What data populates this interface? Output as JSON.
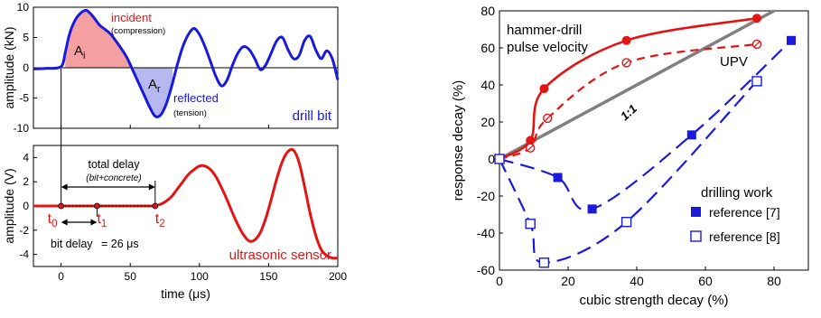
{
  "colors": {
    "blue": "#1a1adc",
    "red": "#e31414",
    "gray": "#808080",
    "red_fill": "#f4a0a0",
    "blue_fill": "#b8b8f0"
  },
  "chart_data": [
    {
      "type": "line",
      "panel": "top-left",
      "ylabel": "amplitude (kN)",
      "xlim": [
        -20,
        200
      ],
      "ylim": [
        -10,
        10
      ],
      "yticks": [
        -10,
        -5,
        0,
        5,
        10
      ],
      "series": [
        {
          "name": "drill bit",
          "color": "#1a1adc",
          "x": [
            -20,
            -10,
            0,
            3,
            6,
            10,
            14,
            18,
            21,
            24,
            28,
            32,
            36,
            40,
            44,
            48,
            52,
            56,
            60,
            64,
            68,
            72,
            76,
            80,
            84,
            88,
            92,
            96,
            100,
            104,
            108,
            112,
            116,
            120,
            124,
            128,
            132,
            136,
            140,
            144,
            148,
            152,
            156,
            160,
            164,
            168,
            172,
            176,
            180,
            184,
            188,
            192,
            196,
            200
          ],
          "y": [
            -0.2,
            -0.1,
            0.2,
            2.5,
            5.5,
            7.8,
            9.0,
            9.5,
            9.0,
            8.2,
            7.0,
            6.3,
            5.5,
            4.3,
            3.0,
            1.5,
            -0.5,
            -2.5,
            -4.5,
            -6.5,
            -8.0,
            -7.8,
            -6.0,
            -3.0,
            0.5,
            3.5,
            5.5,
            6.5,
            5.5,
            3.5,
            1.0,
            -1.5,
            -3.0,
            -2.0,
            0.5,
            2.5,
            3.5,
            3.0,
            1.5,
            -0.3,
            0.5,
            2.5,
            4.5,
            5.0,
            3.0,
            1.5,
            2.0,
            4.5,
            5.2,
            3.0,
            1.5,
            2.8,
            1.5,
            -2.0
          ]
        }
      ],
      "annotations": {
        "incident": "incident",
        "compression": "(compression)",
        "reflected": "reflected",
        "tension": "(tension)",
        "area_incident_main": "A",
        "area_incident_sub": "i",
        "area_reflected_main": "A",
        "area_reflected_sub": "r",
        "series_label": "drill bit"
      }
    },
    {
      "type": "line",
      "panel": "bottom-left",
      "xlabel": "time (μs)",
      "ylabel": "amplitude (V)",
      "xlim": [
        -20,
        200
      ],
      "ylim": [
        -5,
        5
      ],
      "xticks": [
        0,
        50,
        100,
        150,
        200
      ],
      "yticks": [
        -4,
        -2,
        0,
        2,
        4
      ],
      "series": [
        {
          "name": "ultrasonic sensor",
          "color": "#e31414",
          "x": [
            -20,
            0,
            20,
            40,
            60,
            66,
            68,
            72,
            76,
            80,
            84,
            88,
            92,
            96,
            100,
            104,
            108,
            112,
            116,
            120,
            124,
            128,
            132,
            136,
            140,
            144,
            148,
            152,
            156,
            160,
            164,
            168,
            172,
            176,
            180,
            184,
            188,
            192,
            196,
            200
          ],
          "y": [
            0,
            0,
            0,
            0,
            0,
            0,
            0.02,
            0.15,
            0.4,
            0.8,
            1.4,
            2.0,
            2.6,
            3.0,
            3.3,
            3.3,
            3.0,
            2.4,
            1.5,
            0.5,
            -0.6,
            -1.6,
            -2.4,
            -2.9,
            -2.8,
            -2.2,
            -1.0,
            0.6,
            2.3,
            3.7,
            4.5,
            4.6,
            3.6,
            1.6,
            -0.6,
            -2.4,
            -3.6,
            -4.1,
            -4.3,
            -4.3
          ]
        }
      ],
      "markers": [
        {
          "label_main": "t",
          "label_sub": "0",
          "x": 0
        },
        {
          "label_main": "t",
          "label_sub": "1",
          "x": 26
        },
        {
          "label_main": "t",
          "label_sub": "2",
          "x": 68
        }
      ],
      "annotations": {
        "total_delay": "total delay",
        "total_delay_note": "(bit+concrete)",
        "bit_delay_prefix": "bit delay",
        "bit_delay_value": "= 26 μs",
        "series_label": "ultrasonic sensor"
      }
    },
    {
      "type": "scatter",
      "panel": "right",
      "xlabel": "cubic strength decay (%)",
      "ylabel": "response decay (%)",
      "xlim": [
        0,
        90
      ],
      "ylim": [
        -60,
        80
      ],
      "xticks": [
        0,
        20,
        40,
        60,
        80
      ],
      "yticks": [
        -60,
        -40,
        -20,
        0,
        20,
        40,
        60,
        80
      ],
      "series": [
        {
          "name": "hammer-drill pulse velocity",
          "color": "#e31414",
          "marker": "filled-circle",
          "line": "solid",
          "x": [
            0,
            9,
            13,
            37,
            75
          ],
          "y": [
            0,
            10,
            38,
            64,
            76
          ]
        },
        {
          "name": "UPV",
          "color": "#e31414",
          "marker": "open-circle",
          "line": "dashed",
          "x": [
            0,
            9,
            14,
            37,
            75
          ],
          "y": [
            0,
            6,
            22,
            52,
            62
          ]
        },
        {
          "name": "reference [7]",
          "color": "#1a1adc",
          "marker": "filled-square",
          "line": "dashed",
          "x": [
            0,
            17,
            27,
            56,
            85
          ],
          "y": [
            0,
            -10,
            -27,
            13,
            64
          ]
        },
        {
          "name": "reference [8]",
          "color": "#1a1adc",
          "marker": "open-square",
          "line": "dashed",
          "x": [
            0,
            9,
            13,
            37,
            75
          ],
          "y": [
            0,
            -35,
            -56,
            -34,
            42
          ]
        },
        {
          "name": "1:1",
          "color": "#808080",
          "marker": "none",
          "line": "solid",
          "x": [
            0,
            80
          ],
          "y": [
            0,
            80
          ]
        }
      ],
      "labels": {
        "hammer_line1": "hammer-drill",
        "hammer_line2": "pulse velocity",
        "upv": "UPV",
        "one_to_one": "1:1",
        "drilling_work": "drilling work",
        "ref7": "reference [7]",
        "ref8": "reference [8]"
      }
    }
  ]
}
